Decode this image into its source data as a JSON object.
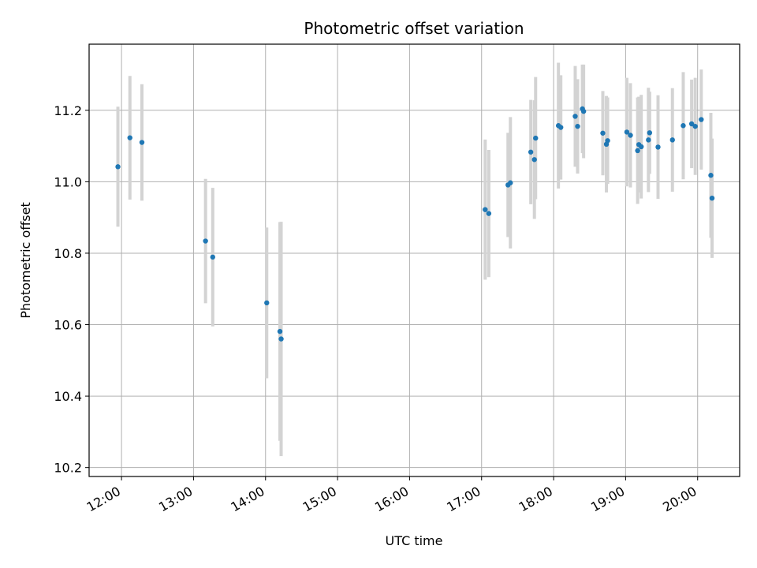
{
  "chart_data": {
    "type": "scatter",
    "title": "Photometric offset variation",
    "xlabel": "UTC time",
    "ylabel": "Photometric offset",
    "x_unit": "UTC time (HH:MM)",
    "xlim": [
      "11:33",
      "20:35"
    ],
    "ylim": [
      10.175,
      11.385
    ],
    "x_ticks": [
      "12:00",
      "13:00",
      "14:00",
      "15:00",
      "16:00",
      "17:00",
      "18:00",
      "19:00",
      "20:00"
    ],
    "y_ticks": [
      10.2,
      10.4,
      10.6,
      10.8,
      11.0,
      11.2
    ],
    "y_tick_labels": [
      "10.2",
      "10.4",
      "10.6",
      "10.8",
      "11.0",
      "11.2"
    ],
    "grid": true,
    "colors": {
      "points": "#1f77b4",
      "errorbars": "#d3d3d3",
      "grid": "#b0b0b0"
    },
    "points": [
      {
        "x": "11:57",
        "y": 11.042,
        "err": 0.168
      },
      {
        "x": "12:07",
        "y": 11.123,
        "err": 0.173
      },
      {
        "x": "12:17",
        "y": 11.11,
        "err": 0.163
      },
      {
        "x": "13:10",
        "y": 10.834,
        "err": 0.174
      },
      {
        "x": "13:16",
        "y": 10.789,
        "err": 0.194
      },
      {
        "x": "14:01",
        "y": 10.661,
        "err": 0.211
      },
      {
        "x": "14:12",
        "y": 10.581,
        "err": 0.306
      },
      {
        "x": "14:13",
        "y": 10.56,
        "err": 0.328
      },
      {
        "x": "17:03",
        "y": 10.922,
        "err": 0.196
      },
      {
        "x": "17:06",
        "y": 10.911,
        "err": 0.178
      },
      {
        "x": "17:22",
        "y": 10.991,
        "err": 0.146
      },
      {
        "x": "17:24",
        "y": 10.997,
        "err": 0.184
      },
      {
        "x": "17:41",
        "y": 11.083,
        "err": 0.146
      },
      {
        "x": "17:44",
        "y": 11.062,
        "err": 0.166
      },
      {
        "x": "17:45",
        "y": 11.122,
        "err": 0.171
      },
      {
        "x": "18:04",
        "y": 11.157,
        "err": 0.176
      },
      {
        "x": "18:06",
        "y": 11.152,
        "err": 0.146
      },
      {
        "x": "18:18",
        "y": 11.183,
        "err": 0.141
      },
      {
        "x": "18:20",
        "y": 11.155,
        "err": 0.132
      },
      {
        "x": "18:24",
        "y": 11.204,
        "err": 0.124
      },
      {
        "x": "18:25",
        "y": 11.197,
        "err": 0.131
      },
      {
        "x": "18:41",
        "y": 11.136,
        "err": 0.118
      },
      {
        "x": "18:44",
        "y": 11.105,
        "err": 0.135
      },
      {
        "x": "18:45",
        "y": 11.115,
        "err": 0.121
      },
      {
        "x": "19:01",
        "y": 11.139,
        "err": 0.152
      },
      {
        "x": "19:04",
        "y": 11.13,
        "err": 0.146
      },
      {
        "x": "19:10",
        "y": 11.087,
        "err": 0.149
      },
      {
        "x": "19:11",
        "y": 11.104,
        "err": 0.134
      },
      {
        "x": "19:13",
        "y": 11.098,
        "err": 0.145
      },
      {
        "x": "19:19",
        "y": 11.117,
        "err": 0.146
      },
      {
        "x": "19:20",
        "y": 11.137,
        "err": 0.115
      },
      {
        "x": "19:27",
        "y": 11.097,
        "err": 0.145
      },
      {
        "x": "19:39",
        "y": 11.117,
        "err": 0.145
      },
      {
        "x": "19:48",
        "y": 11.157,
        "err": 0.15
      },
      {
        "x": "19:55",
        "y": 11.162,
        "err": 0.124
      },
      {
        "x": "19:58",
        "y": 11.155,
        "err": 0.136
      },
      {
        "x": "20:03",
        "y": 11.174,
        "err": 0.14
      },
      {
        "x": "20:11",
        "y": 11.018,
        "err": 0.175
      },
      {
        "x": "20:12",
        "y": 10.954,
        "err": 0.167
      }
    ]
  }
}
